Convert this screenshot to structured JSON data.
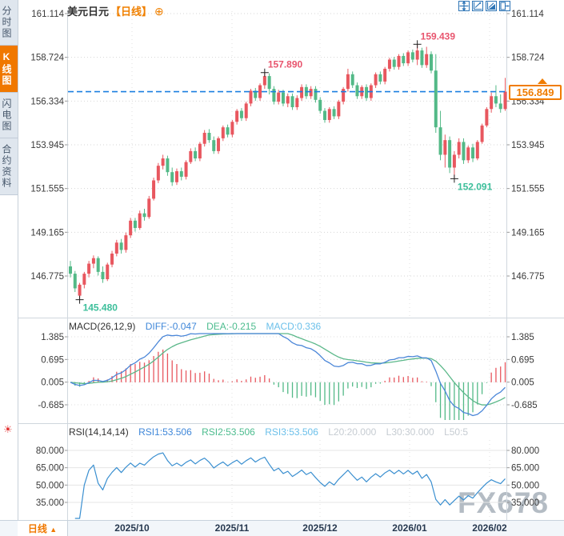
{
  "header": {
    "symbol": "美元日元",
    "period": "【日线】",
    "add_icon": "⊕"
  },
  "sidebar": {
    "tabs": [
      {
        "label": "分时图",
        "active": false
      },
      {
        "label": "K线图",
        "active": true
      },
      {
        "label": "闪电图",
        "active": false
      },
      {
        "label": "合约资料",
        "active": false
      }
    ]
  },
  "toolbar": {
    "buttons": [
      "pan",
      "scale-x",
      "scale-y",
      "exit"
    ]
  },
  "watermark": "FX678",
  "bottom_bar": {
    "period_label": "日线",
    "arrow": "▲"
  },
  "chart_data": [
    {
      "type": "candlestick",
      "symbol": "美元日元",
      "interval": "日线",
      "y_ticks": [
        161.114,
        158.724,
        156.334,
        153.945,
        151.555,
        149.165,
        146.775
      ],
      "x_labels": [
        "2025/10",
        "2025/11",
        "2025/12",
        "2026/01",
        "2026/02"
      ],
      "current_price": 156.849,
      "current_price_label": "156.849",
      "colors": {
        "up": "#e8575f",
        "down": "#53b987",
        "dashed_line": "#1b7fe0",
        "price_tag": "#f07c00"
      },
      "annotations": [
        {
          "text": "157.890",
          "index": 42,
          "field": "high",
          "placement": "above",
          "color": "#e8556e"
        },
        {
          "text": "159.439",
          "index": 75,
          "field": "high",
          "placement": "above",
          "color": "#e8556e"
        },
        {
          "text": "152.091",
          "index": 83,
          "field": "low",
          "placement": "below",
          "color": "#3dbf9b"
        },
        {
          "text": "145.480",
          "index": 2,
          "field": "low",
          "placement": "below",
          "color": "#3dbf9b"
        }
      ],
      "candles_ohlc": [
        [
          147.3,
          147.6,
          146.7,
          146.9
        ],
        [
          146.9,
          147.05,
          145.9,
          146.1
        ],
        [
          145.7,
          146.4,
          145.48,
          146.3
        ],
        [
          146.3,
          147.0,
          146.1,
          146.9
        ],
        [
          146.9,
          147.6,
          146.7,
          147.45
        ],
        [
          147.45,
          147.9,
          147.2,
          147.75
        ],
        [
          147.75,
          147.85,
          146.8,
          147.0
        ],
        [
          147.0,
          147.3,
          146.4,
          146.6
        ],
        [
          146.6,
          147.5,
          146.5,
          147.4
        ],
        [
          147.4,
          148.15,
          147.25,
          148.0
        ],
        [
          148.0,
          148.75,
          147.85,
          148.6
        ],
        [
          148.6,
          148.8,
          148.0,
          148.2
        ],
        [
          148.2,
          149.15,
          148.05,
          149.0
        ],
        [
          149.0,
          149.95,
          148.85,
          149.8
        ],
        [
          149.8,
          149.95,
          149.2,
          149.4
        ],
        [
          149.4,
          150.35,
          149.3,
          150.2
        ],
        [
          150.2,
          150.45,
          149.8,
          150.0
        ],
        [
          150.0,
          151.15,
          149.9,
          151.0
        ],
        [
          151.0,
          152.15,
          150.9,
          152.0
        ],
        [
          152.0,
          152.95,
          151.85,
          152.8
        ],
        [
          152.8,
          153.4,
          152.6,
          153.2
        ],
        [
          153.2,
          153.35,
          152.25,
          152.45
        ],
        [
          152.45,
          152.7,
          151.7,
          151.9
        ],
        [
          151.9,
          152.65,
          151.75,
          152.5
        ],
        [
          152.5,
          152.7,
          152.0,
          152.2
        ],
        [
          152.2,
          153.1,
          152.05,
          153.0
        ],
        [
          153.0,
          153.75,
          152.9,
          153.6
        ],
        [
          153.6,
          153.8,
          153.05,
          153.2
        ],
        [
          153.2,
          154.1,
          153.05,
          154.0
        ],
        [
          154.0,
          154.75,
          153.85,
          154.6
        ],
        [
          154.6,
          154.8,
          154.05,
          154.2
        ],
        [
          154.2,
          154.4,
          153.45,
          153.6
        ],
        [
          153.6,
          154.4,
          153.45,
          154.3
        ],
        [
          154.3,
          155.0,
          154.15,
          154.9
        ],
        [
          154.9,
          155.05,
          154.35,
          154.5
        ],
        [
          154.5,
          155.3,
          154.35,
          155.2
        ],
        [
          155.2,
          155.9,
          155.05,
          155.8
        ],
        [
          155.8,
          155.95,
          155.25,
          155.4
        ],
        [
          155.4,
          156.3,
          155.25,
          156.2
        ],
        [
          156.2,
          157.0,
          156.05,
          156.9
        ],
        [
          156.9,
          157.05,
          156.35,
          156.5
        ],
        [
          156.5,
          157.3,
          156.35,
          157.2
        ],
        [
          157.2,
          157.89,
          157.0,
          157.7
        ],
        [
          157.7,
          157.85,
          156.7,
          157.0
        ],
        [
          157.0,
          157.15,
          156.15,
          156.3
        ],
        [
          156.3,
          156.95,
          156.15,
          156.8
        ],
        [
          156.8,
          156.95,
          156.05,
          156.2
        ],
        [
          156.2,
          156.75,
          156.0,
          156.6
        ],
        [
          156.6,
          156.75,
          155.85,
          156.0
        ],
        [
          156.0,
          156.65,
          155.85,
          156.5
        ],
        [
          156.5,
          157.25,
          156.35,
          157.1
        ],
        [
          157.1,
          157.25,
          156.45,
          156.6
        ],
        [
          156.6,
          157.15,
          156.45,
          157.0
        ],
        [
          157.0,
          157.15,
          156.25,
          156.4
        ],
        [
          156.4,
          156.55,
          155.65,
          155.8
        ],
        [
          155.8,
          155.95,
          155.15,
          155.3
        ],
        [
          155.3,
          156.0,
          155.15,
          155.9
        ],
        [
          155.9,
          156.05,
          155.35,
          155.5
        ],
        [
          155.5,
          156.4,
          155.35,
          156.3
        ],
        [
          156.3,
          157.1,
          156.15,
          157.0
        ],
        [
          157.0,
          158.1,
          156.85,
          157.8
        ],
        [
          157.8,
          157.95,
          157.05,
          157.2
        ],
        [
          157.2,
          157.35,
          156.45,
          156.6
        ],
        [
          156.6,
          157.2,
          156.45,
          157.1
        ],
        [
          157.1,
          157.25,
          156.35,
          156.5
        ],
        [
          156.5,
          157.3,
          156.35,
          157.2
        ],
        [
          157.2,
          157.9,
          157.05,
          157.8
        ],
        [
          157.8,
          157.95,
          157.25,
          157.4
        ],
        [
          157.4,
          158.2,
          157.25,
          158.1
        ],
        [
          158.1,
          158.7,
          157.95,
          158.6
        ],
        [
          158.6,
          158.75,
          158.05,
          158.2
        ],
        [
          158.2,
          158.9,
          158.05,
          158.8
        ],
        [
          158.8,
          158.95,
          158.25,
          158.4
        ],
        [
          158.4,
          159.1,
          158.25,
          159.0
        ],
        [
          159.0,
          159.15,
          158.45,
          158.6
        ],
        [
          158.6,
          159.439,
          158.3,
          159.1
        ],
        [
          159.1,
          159.25,
          158.15,
          158.3
        ],
        [
          158.3,
          159.3,
          158.15,
          158.9
        ],
        [
          158.9,
          159.05,
          157.85,
          158.0
        ],
        [
          158.0,
          158.9,
          154.6,
          154.9
        ],
        [
          154.9,
          155.8,
          153.1,
          153.4
        ],
        [
          153.4,
          154.5,
          152.7,
          154.2
        ],
        [
          154.2,
          154.4,
          152.4,
          152.7
        ],
        [
          152.7,
          153.6,
          152.091,
          153.4
        ],
        [
          153.4,
          154.3,
          153.2,
          154.1
        ],
        [
          154.1,
          154.3,
          152.9,
          153.1
        ],
        [
          153.1,
          153.9,
          152.95,
          153.8
        ],
        [
          153.8,
          154.0,
          153.0,
          153.2
        ],
        [
          153.2,
          154.2,
          153.1,
          154.1
        ],
        [
          154.1,
          155.1,
          154.0,
          155.0
        ],
        [
          155.0,
          156.0,
          154.9,
          155.9
        ],
        [
          155.9,
          156.8,
          155.7,
          156.6
        ],
        [
          156.6,
          157.2,
          156.0,
          156.2
        ],
        [
          156.2,
          156.7,
          155.7,
          155.9
        ],
        [
          155.9,
          157.6,
          155.8,
          156.849
        ]
      ]
    },
    {
      "type": "line+histogram",
      "name": "MACD",
      "title": "MACD(26,12,9)",
      "params": {
        "slow": 26,
        "fast": 12,
        "signal": 9
      },
      "values": [
        {
          "label": "DIFF:-0.047",
          "color": "#3f87d9"
        },
        {
          "label": "DEA:-0.215",
          "color": "#4cbc8e"
        },
        {
          "label": "MACD:0.336",
          "color": "#6cc0ea"
        }
      ],
      "y_tick_labels": [
        "1.385",
        "0.695",
        "0.005",
        "-0.685"
      ],
      "y_ticks": [
        1.385,
        0.695,
        0.005,
        -0.685
      ],
      "line_colors": {
        "diff": "#4a86d8",
        "dea": "#5cb88a"
      }
    },
    {
      "type": "line",
      "name": "RSI",
      "title": "RSI(14,14,14)",
      "period": 14,
      "values": [
        {
          "label": "RSI1:53.506",
          "color": "#3f87d9"
        },
        {
          "label": "RSI2:53.506",
          "color": "#4cbc8e"
        },
        {
          "label": "RSI3:53.506",
          "color": "#6cc0ea"
        },
        {
          "label": "L20:20.000",
          "color": "#c6ccd2"
        },
        {
          "label": "L30:30.000",
          "color": "#c6ccd2"
        },
        {
          "label": "L50:5",
          "color": "#c6ccd2"
        }
      ],
      "y_tick_labels": [
        "80.000",
        "65.000",
        "50.000",
        "35.000"
      ],
      "y_ticks": [
        80,
        65,
        50,
        35
      ],
      "line_color": "#3a8fd0"
    }
  ]
}
